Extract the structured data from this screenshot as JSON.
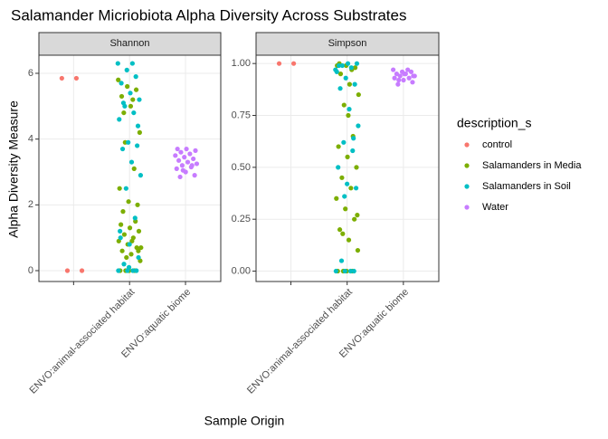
{
  "chart_data": {
    "type": "scatter",
    "title": "Salamander Micriobiota Alpha Diversity Across Substrates",
    "x_label": "Sample Origin",
    "y_label": "Alpha Diversity Measure",
    "legend_title": "description_s",
    "categories": [
      null,
      "ENVO:animal-associated habitat",
      "ENVO:aquatic biome"
    ],
    "series": [
      {
        "name": "control",
        "color": "#F8766D"
      },
      {
        "name": "Salamanders in Media",
        "color": "#7CAE00"
      },
      {
        "name": "Salamanders in Soil",
        "color": "#00BFC4"
      },
      {
        "name": "Water",
        "color": "#C77CFF"
      }
    ],
    "facets": [
      {
        "name": "Shannon",
        "ylim": [
          -0.33,
          6.55
        ],
        "yticks": [
          0,
          2,
          4,
          6
        ],
        "series": [
          {
            "values": [
              [
                5.85,
                5.85,
                0,
                0
              ],
              [],
              []
            ]
          },
          {
            "values": [
              [],
              [
                0,
                0,
                0,
                0,
                0.3,
                0.5,
                0.6,
                0.7,
                0.8,
                0.9,
                1.0,
                1.1,
                1.2,
                1.3,
                1.4,
                1.5,
                0.4,
                0.7,
                0.9,
                1.8,
                2.0,
                2.1,
                2.5,
                3.1,
                3.9,
                4.2,
                5.0,
                5.3,
                5.5,
                5.6,
                5.8,
                5.2,
                4.8,
                0.6
              ],
              []
            ]
          },
          {
            "values": [
              [],
              [
                0,
                0,
                0,
                0,
                0.2,
                0.4,
                0.8,
                1.0,
                1.6,
                2.5,
                2.9,
                3.3,
                3.7,
                3.8,
                3.9,
                4.6,
                4.8,
                5.0,
                5.2,
                5.4,
                5.7,
                5.9,
                6.1,
                6.3,
                6.3,
                5.1,
                4.4,
                0.1,
                1.2
              ],
              []
            ]
          },
          {
            "values": [
              [],
              [],
              [
                2.85,
                2.9,
                3.0,
                3.1,
                3.15,
                3.2,
                3.25,
                3.3,
                3.35,
                3.4,
                3.45,
                3.5,
                3.55,
                3.6,
                3.65,
                3.7,
                3.7,
                3.2,
                3.05
              ]
            ]
          }
        ]
      },
      {
        "name": "Simpson",
        "ylim": [
          -0.05,
          1.04
        ],
        "yticks": [
          {
            "value": 0,
            "label": "0.00"
          },
          {
            "value": 0.25,
            "label": "0.25"
          },
          {
            "value": 0.5,
            "label": "0.50"
          },
          {
            "value": 0.75,
            "label": "0.75"
          },
          {
            "value": 1,
            "label": "1.00"
          }
        ],
        "series": [
          {
            "values": [
              [
                1.0,
                1.0
              ],
              [],
              []
            ]
          },
          {
            "values": [
              [],
              [
                0,
                0,
                0,
                0,
                0.1,
                0.15,
                0.2,
                0.25,
                0.3,
                0.35,
                0.4,
                0.45,
                0.5,
                0.55,
                0.6,
                0.65,
                0.8,
                0.85,
                0.9,
                0.95,
                0.98,
                0.99,
                0.99,
                0.97,
                0.18,
                0.27,
                0.75,
                1.0
              ],
              []
            ]
          },
          {
            "values": [
              [],
              [
                0,
                0,
                0,
                0,
                0.05,
                0.4,
                0.42,
                0.5,
                0.58,
                0.62,
                0.7,
                0.78,
                0.88,
                0.9,
                0.93,
                0.96,
                0.98,
                0.99,
                1.0,
                1.0,
                0.99,
                0.64,
                0.36,
                0.97
              ],
              []
            ]
          },
          {
            "values": [
              [],
              [],
              [
                0.9,
                0.91,
                0.92,
                0.93,
                0.93,
                0.94,
                0.94,
                0.95,
                0.95,
                0.96,
                0.96,
                0.97,
                0.97,
                0.92,
                0.94,
                0.95
              ]
            ]
          }
        ]
      }
    ]
  }
}
